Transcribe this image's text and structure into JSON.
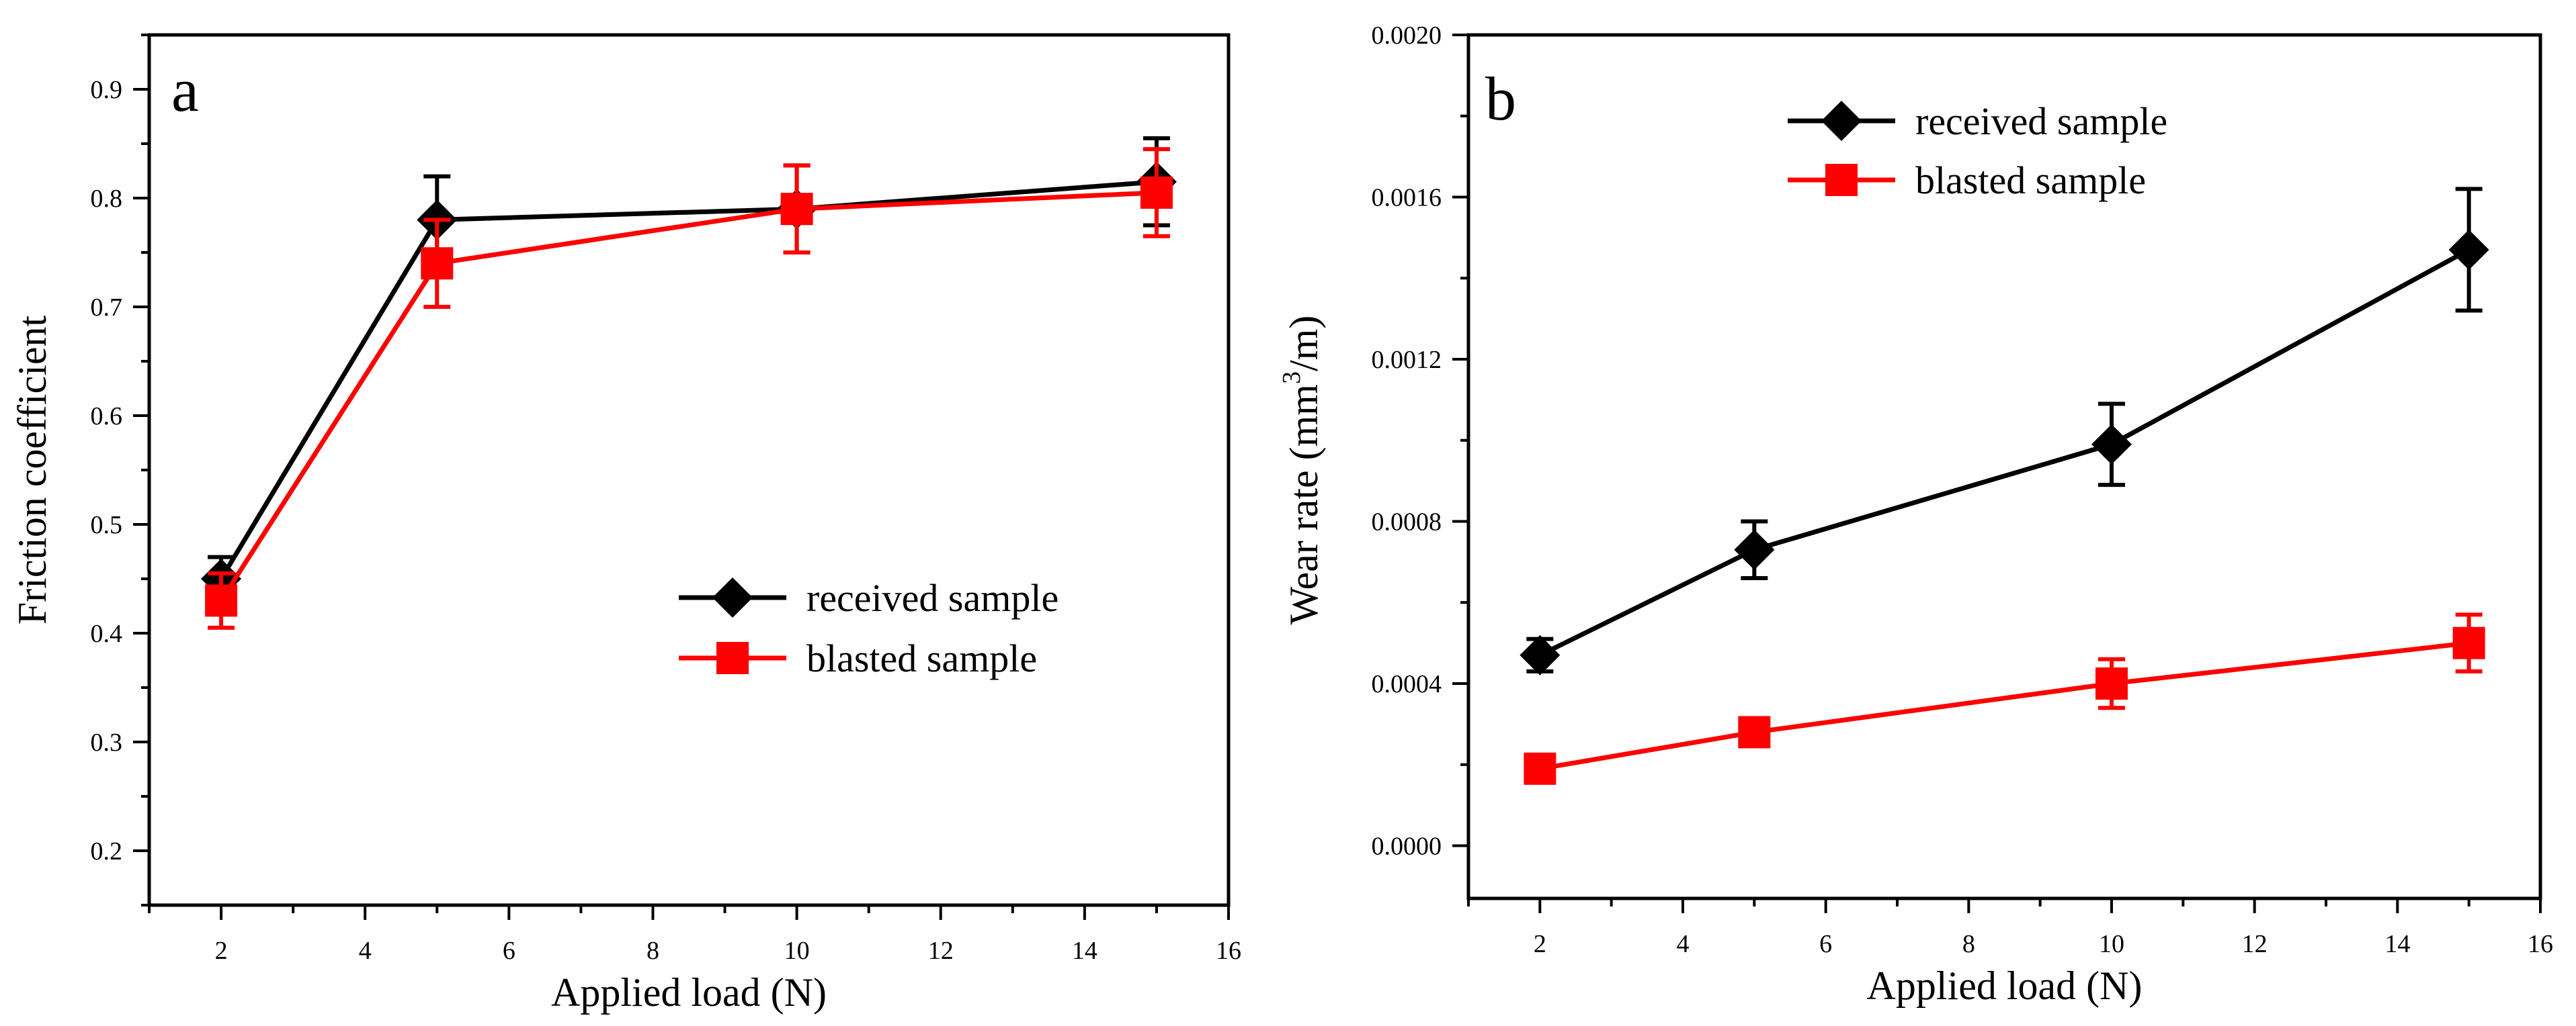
{
  "colors": {
    "received": "#000000",
    "blasted": "#ff0000",
    "axis": "#000000"
  },
  "chart_data": [
    {
      "panel_label": "a",
      "type": "line",
      "xlabel": "Applied load (N)",
      "ylabel": "Friction coefficient",
      "xlim": [
        1,
        16
      ],
      "ylim": [
        0.15,
        0.95
      ],
      "xticks": [
        "2",
        "4",
        "6",
        "8",
        "10",
        "12",
        "14",
        "16"
      ],
      "yticks": [
        "0.2",
        "0.3",
        "0.4",
        "0.5",
        "0.6",
        "0.7",
        "0.8",
        "0.9"
      ],
      "legend_position": "center-right",
      "x": [
        2,
        5,
        10,
        15
      ],
      "series": [
        {
          "name": "received sample",
          "marker": "diamond",
          "color": "#000000",
          "values": [
            0.45,
            0.78,
            0.79,
            0.815
          ],
          "errors": [
            0.02,
            0.04,
            0.04,
            0.04
          ]
        },
        {
          "name": "blasted sample",
          "marker": "square",
          "color": "#ff0000",
          "values": [
            0.43,
            0.74,
            0.79,
            0.805
          ],
          "errors": [
            0.025,
            0.04,
            0.04,
            0.04
          ]
        }
      ]
    },
    {
      "panel_label": "b",
      "type": "line",
      "xlabel": "Applied load (N)",
      "ylabel_parts": [
        "Wear rate (mm",
        "3",
        "/m)"
      ],
      "xlim": [
        1,
        16
      ],
      "ylim": [
        -0.00013,
        0.002
      ],
      "xticks": [
        "2",
        "4",
        "6",
        "8",
        "10",
        "12",
        "14",
        "16"
      ],
      "yticks": [
        "0.0000",
        "0.0004",
        "0.0008",
        "0.0012",
        "0.0016",
        "0.0020"
      ],
      "legend_position": "top-left",
      "x": [
        2,
        5,
        10,
        15
      ],
      "series": [
        {
          "name": "received sample",
          "marker": "diamond",
          "color": "#000000",
          "values": [
            0.00047,
            0.00073,
            0.00099,
            0.00147
          ],
          "errors": [
            4e-05,
            7e-05,
            0.0001,
            0.00015
          ]
        },
        {
          "name": "blasted sample",
          "marker": "square",
          "color": "#ff0000",
          "values": [
            0.00019,
            0.00028,
            0.0004,
            0.0005
          ],
          "errors": [
            2e-05,
            3e-05,
            6e-05,
            7e-05
          ]
        }
      ]
    }
  ]
}
